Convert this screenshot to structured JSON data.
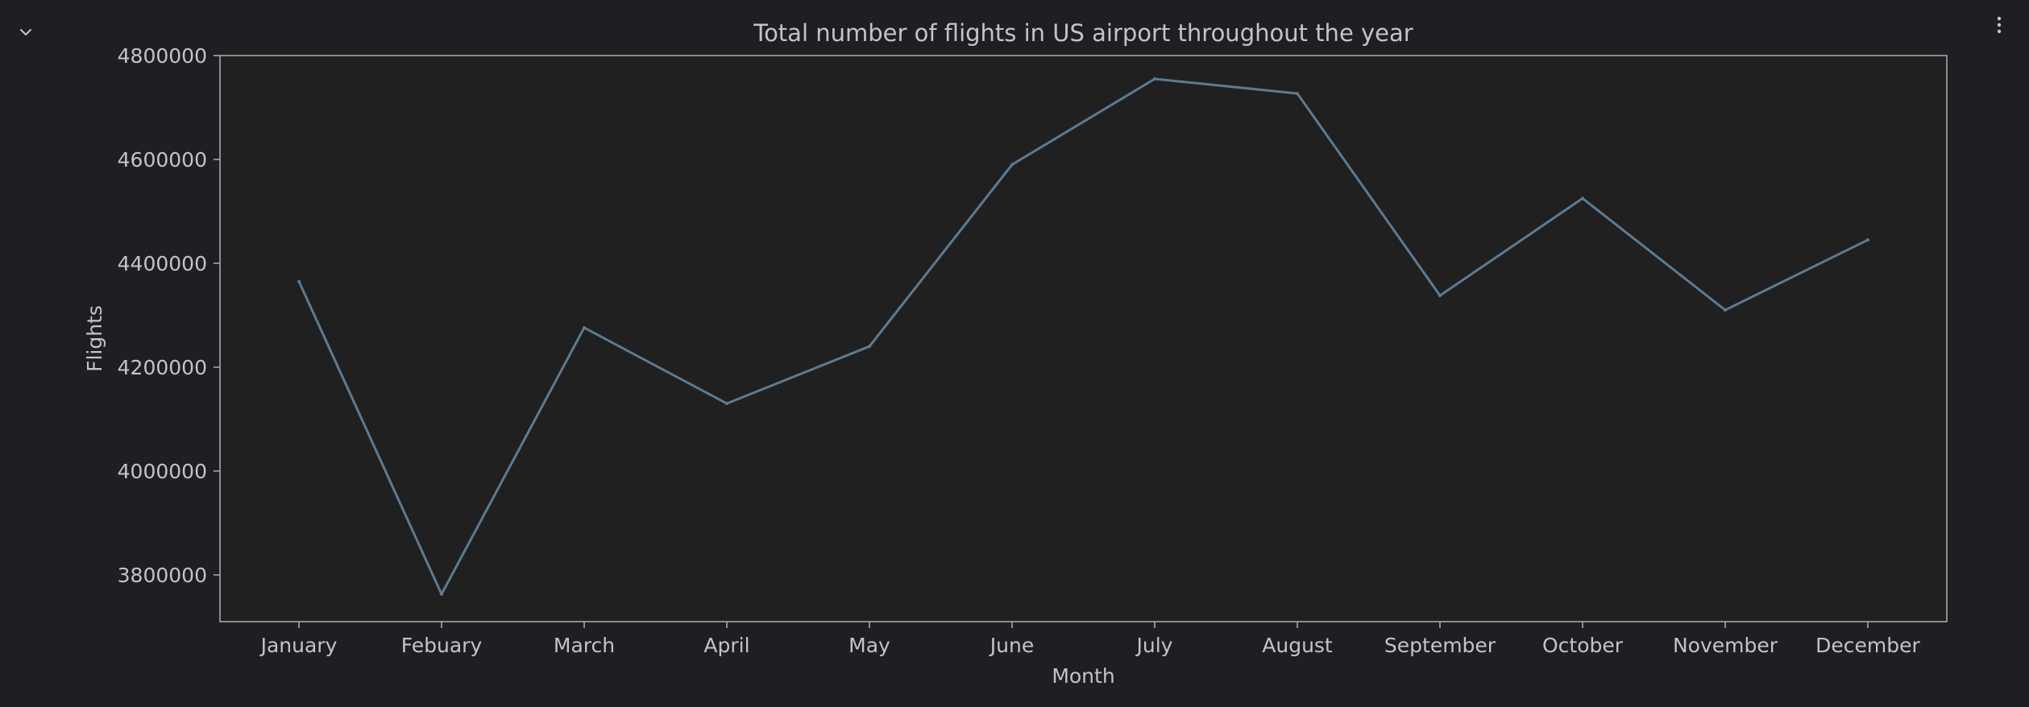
{
  "cell": {
    "collapse_icon": "chevron-down-icon",
    "menu_icon": "more-vertical-icon"
  },
  "colors": {
    "page_background": "#1e1f22",
    "plot_background": "#202020",
    "axis": "#b0b0b0",
    "text": "#c4c4c4",
    "line": "#5b7b93"
  },
  "chart_data": {
    "type": "line",
    "title": "Total number of flights in US airport throughout the year",
    "xlabel": "Month",
    "ylabel": "Flights",
    "categories": [
      "January",
      "Febuary",
      "March",
      "April",
      "May",
      "June",
      "July",
      "August",
      "September",
      "October",
      "November",
      "December"
    ],
    "series": [
      {
        "values": [
          4365000,
          3763000,
          4276000,
          4130000,
          4240000,
          4590000,
          4755000,
          4727000,
          4338000,
          4525000,
          4310000,
          4445000
        ]
      }
    ],
    "yticks": [
      "3800000",
      "4000000",
      "4200000",
      "4400000",
      "4600000",
      "4800000"
    ],
    "ylim": [
      3710000,
      4800000
    ],
    "grid": false,
    "legend": "none"
  }
}
